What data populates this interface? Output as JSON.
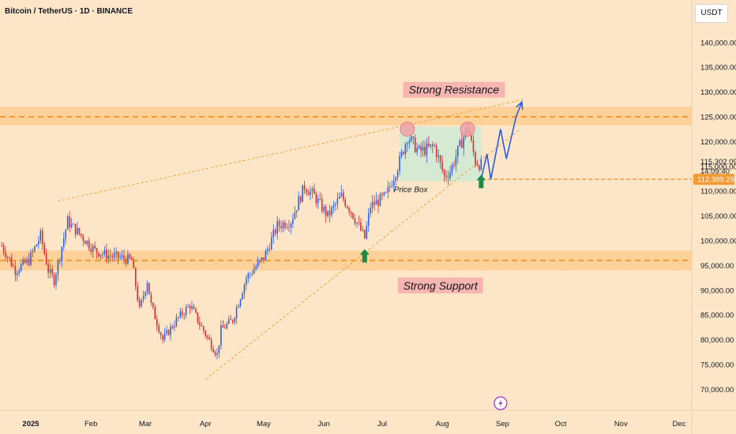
{
  "header": {
    "title": "Bitcoin / TetherUS · 1D · BINANCE",
    "currency": "USDT"
  },
  "colors": {
    "background": "#fde6c8",
    "up": "#2d5fe0",
    "down": "#d32f2f",
    "zone": "#fbc98b",
    "zone_line": "#f29a36",
    "trend_line": "#f0a030",
    "projection": "#2b5ce6",
    "box": "#cfe9d3",
    "arrow": "#1b8a4b",
    "circle": "#f0a2a8",
    "label_bg": "#f7b5b0",
    "price_tag": "#f29a36"
  },
  "chart_data": {
    "type": "candlestick",
    "title": "Bitcoin / TetherUS · 1D · BINANCE",
    "ylim": [
      66000,
      148000
    ],
    "y_ticks": [
      70000,
      75000,
      80000,
      85000,
      90000,
      95000,
      100000,
      105000,
      110000,
      115000,
      120000,
      125000,
      130000,
      135000,
      140000
    ],
    "y_tick_labels": [
      "70,000.00",
      "75,000.00",
      "80,000.00",
      "85,000.00",
      "90,000.00",
      "95,000.00",
      "100,000.00",
      "105,000.00",
      "110,000.00",
      "115,000.00",
      "120,000.00",
      "125,000.00",
      "130,000.00",
      "135,000.00",
      "140,000.00"
    ],
    "x_ticks": [
      {
        "date": "2025-01-01",
        "label": "2025"
      },
      {
        "date": "2025-02-01",
        "label": "Feb"
      },
      {
        "date": "2025-03-01",
        "label": "Mar"
      },
      {
        "date": "2025-04-01",
        "label": "Apr"
      },
      {
        "date": "2025-05-01",
        "label": "May"
      },
      {
        "date": "2025-06-01",
        "label": "Jun"
      },
      {
        "date": "2025-07-01",
        "label": "Jul"
      },
      {
        "date": "2025-08-01",
        "label": "Aug"
      },
      {
        "date": "2025-09-01",
        "label": "Sep"
      },
      {
        "date": "2025-10-01",
        "label": "Oct"
      },
      {
        "date": "2025-11-01",
        "label": "Nov"
      },
      {
        "date": "2025-12-01",
        "label": "Dec"
      }
    ],
    "series": [
      {
        "name": "BTCUSDT",
        "points": [
          [
            "2024-12-17",
            99000
          ],
          [
            "2024-12-24",
            94000
          ],
          [
            "2024-12-31",
            96000
          ],
          [
            "2025-01-06",
            101000
          ],
          [
            "2025-01-10",
            94000
          ],
          [
            "2025-01-13",
            92000
          ],
          [
            "2025-01-20",
            104000
          ],
          [
            "2025-01-22",
            103000
          ],
          [
            "2025-01-27",
            101000
          ],
          [
            "2025-02-03",
            98000
          ],
          [
            "2025-02-10",
            97000
          ],
          [
            "2025-02-17",
            96500
          ],
          [
            "2025-02-22",
            96000
          ],
          [
            "2025-02-26",
            86000
          ],
          [
            "2025-03-02",
            92000
          ],
          [
            "2025-03-04",
            87000
          ],
          [
            "2025-03-10",
            80000
          ],
          [
            "2025-03-17",
            84000
          ],
          [
            "2025-03-24",
            87000
          ],
          [
            "2025-03-30",
            82500
          ],
          [
            "2025-04-07",
            77000
          ],
          [
            "2025-04-09",
            82000
          ],
          [
            "2025-04-15",
            84000
          ],
          [
            "2025-04-22",
            92500
          ],
          [
            "2025-05-01",
            96500
          ],
          [
            "2025-05-08",
            103000
          ],
          [
            "2025-05-15",
            104000
          ],
          [
            "2025-05-22",
            111000
          ],
          [
            "2025-05-27",
            109000
          ],
          [
            "2025-06-03",
            105000
          ],
          [
            "2025-06-10",
            109000
          ],
          [
            "2025-06-15",
            106000
          ],
          [
            "2025-06-22",
            100500
          ],
          [
            "2025-06-25",
            107000
          ],
          [
            "2025-07-03",
            109000
          ],
          [
            "2025-07-10",
            116000
          ],
          [
            "2025-07-14",
            121000
          ],
          [
            "2025-07-20",
            118000
          ],
          [
            "2025-07-28",
            119000
          ],
          [
            "2025-08-02",
            113000
          ],
          [
            "2025-08-05",
            114000
          ],
          [
            "2025-08-10",
            119000
          ],
          [
            "2025-08-14",
            123000
          ],
          [
            "2025-08-18",
            116000
          ],
          [
            "2025-08-21",
            115302
          ]
        ]
      }
    ],
    "last_price": "115,302.09",
    "countdown": "14:09:40",
    "level_price": "112,389.29",
    "resistance_zone": [
      123300,
      127000
    ],
    "resistance_line": 125000,
    "support_zone": [
      94000,
      98000
    ],
    "support_line": 96000,
    "price_box": {
      "from": "2025-07-10",
      "to": "2025-08-21",
      "low": 112000,
      "high": 123000
    },
    "projection_path": [
      [
        "2025-08-21",
        112389
      ],
      [
        "2025-08-24",
        117500
      ],
      [
        "2025-08-26",
        112389
      ],
      [
        "2025-08-31",
        122500
      ],
      [
        "2025-09-03",
        116500
      ],
      [
        "2025-09-08",
        125000
      ],
      [
        "2025-09-11",
        128000
      ]
    ],
    "annotations": {
      "resistance_label": "Strong Resistance",
      "support_label": "Strong Support",
      "box_label": "Price Box"
    },
    "event_icon_date": "2025-08-31"
  }
}
